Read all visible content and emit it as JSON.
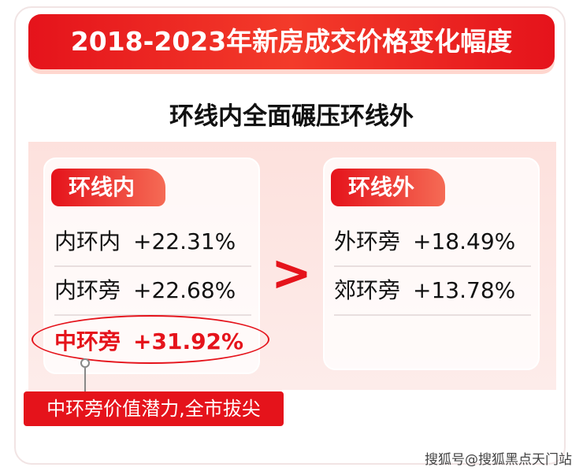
{
  "header": {
    "title": "2018-2023年新房成交价格变化幅度"
  },
  "subtitle": "环线内全面碾压环线外",
  "panels": [
    {
      "label": "环线内",
      "rows": [
        {
          "name": "内环内",
          "change": "+22.31%"
        },
        {
          "name": "内环旁",
          "change": "+22.68%"
        },
        {
          "name": "中环旁",
          "change": "+31.92%"
        }
      ]
    },
    {
      "label": "环线外",
      "rows": [
        {
          "name": "外环旁",
          "change": "+18.49%"
        },
        {
          "name": "郊环旁",
          "change": "+13.78%"
        }
      ]
    }
  ],
  "comparison": ">",
  "callout": "中环旁价值潜力,全市拔尖",
  "watermark": "搜狐号@搜狐黑点天门站"
}
